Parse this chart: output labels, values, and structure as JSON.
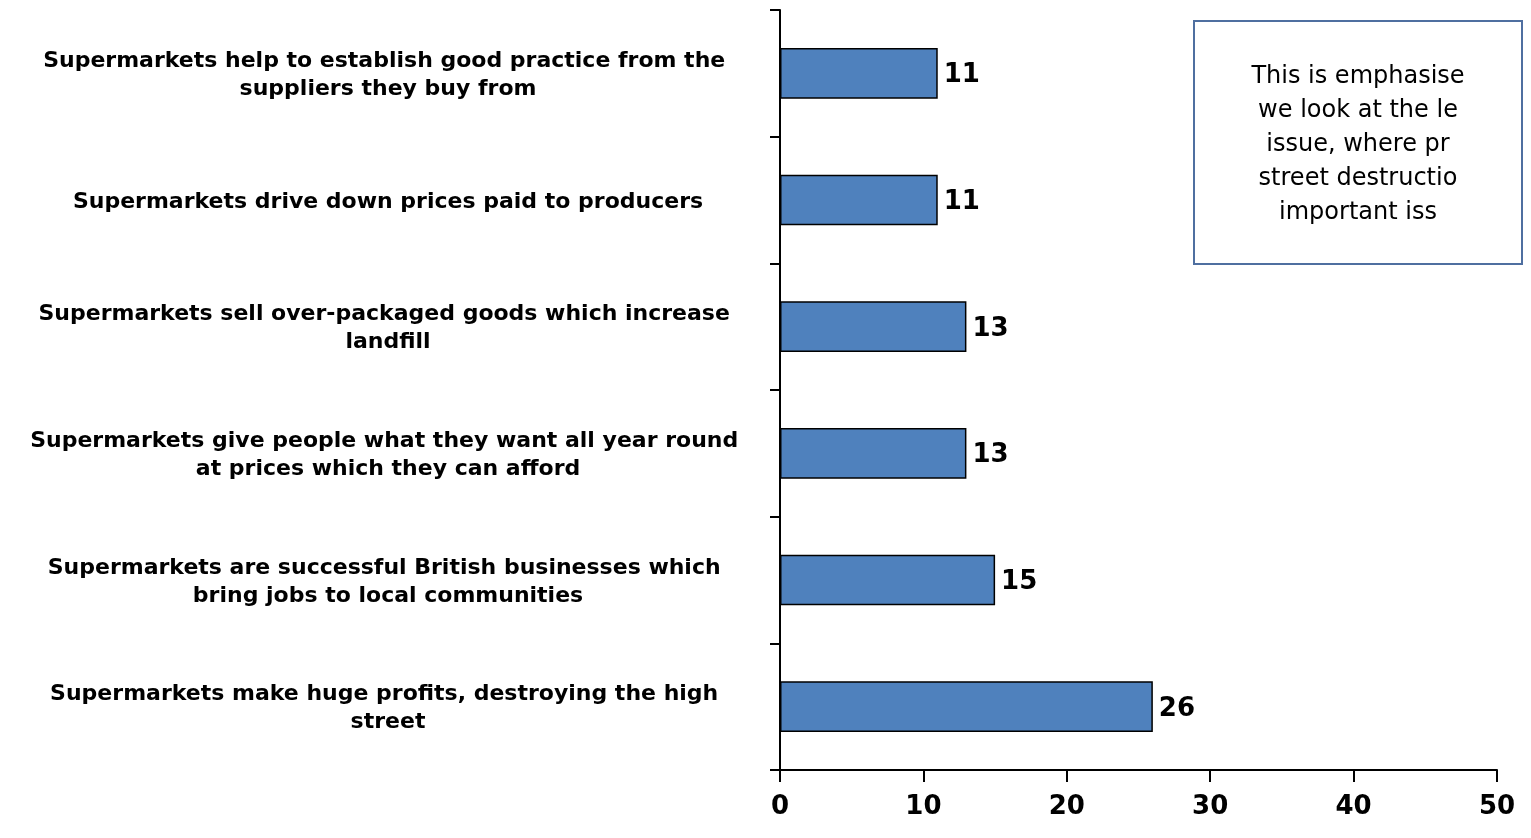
{
  "chart_data": {
    "type": "bar",
    "orientation": "horizontal",
    "categories": [
      "Supermarkets help to establish good practice from the suppliers they buy from",
      "Supermarkets drive down prices paid to producers",
      "Supermarkets sell over-packaged goods which increase landfill",
      "Supermarkets give people what they want all year round at prices which they can afford",
      "Supermarkets are successful British businesses which bring jobs to local communities",
      "Supermarkets make huge profits, destroying the high street"
    ],
    "values": [
      11,
      11,
      13,
      13,
      15,
      26
    ],
    "color": "#4f81bd",
    "data_labels": true,
    "xlim": [
      0,
      50
    ],
    "xticks": [
      0,
      10,
      20,
      30,
      40,
      50
    ],
    "grid": false,
    "annotations": [
      "This is emphasise\nwe look at the le\nissue, where pr\nstreet destructio\nimportant iss"
    ]
  }
}
